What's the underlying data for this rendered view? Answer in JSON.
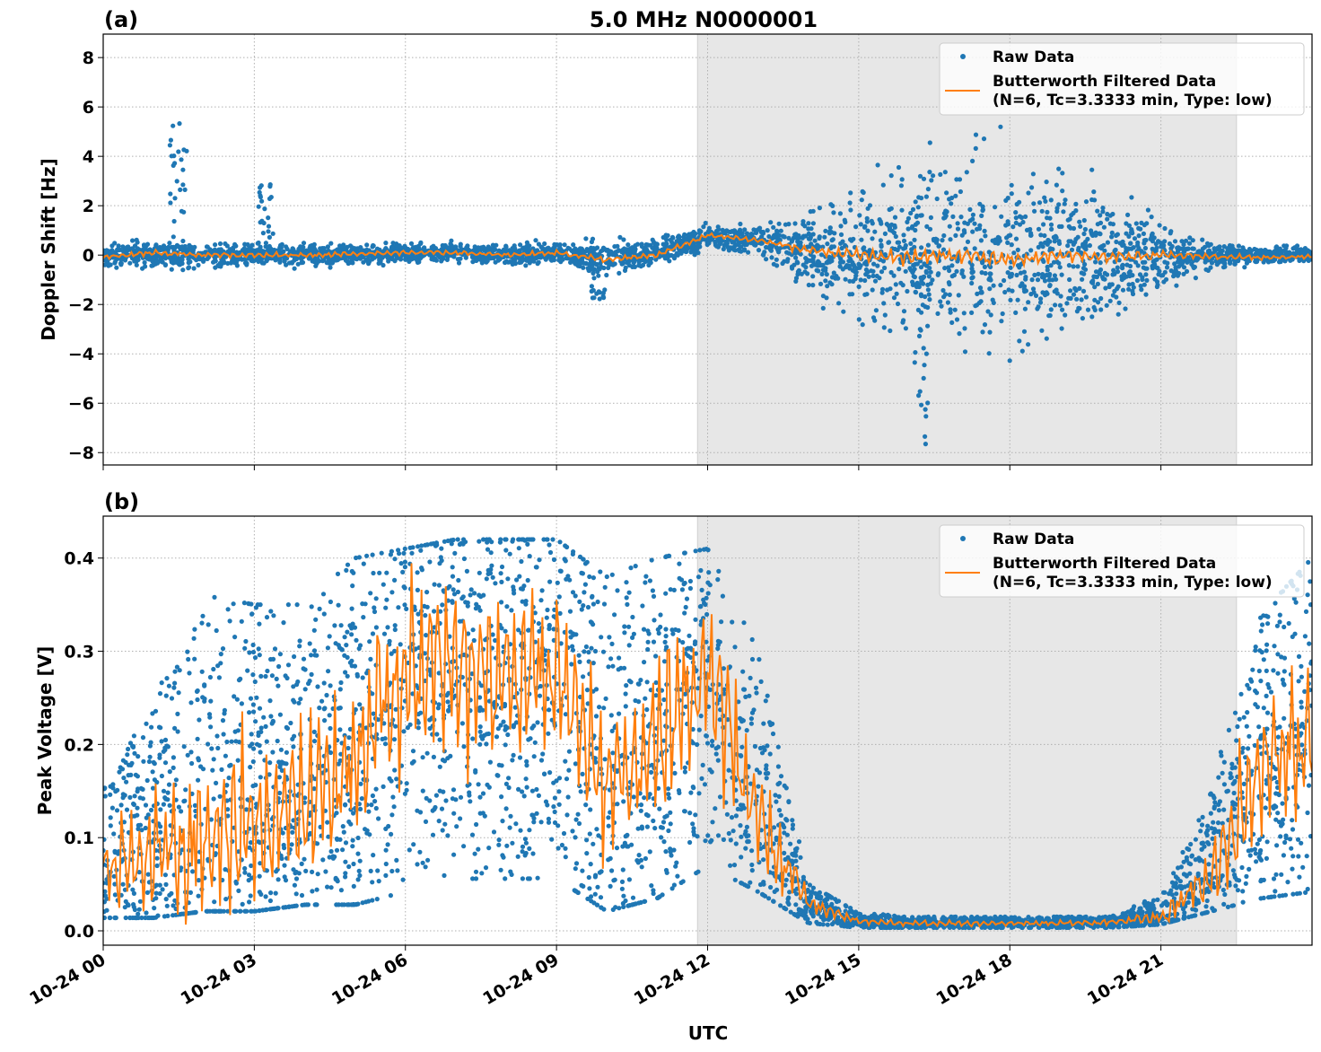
{
  "chart_data": [
    {
      "type": "scatter",
      "panel_label": "(a)",
      "title": "5.0 MHz N0000001",
      "xlabel": "",
      "ylabel": "Doppler Shift [Hz]",
      "xlim_hours": [
        0,
        24
      ],
      "ylim": [
        -8.5,
        8.95
      ],
      "yticks": [
        8,
        6,
        4,
        2,
        0,
        -2,
        -4,
        -6,
        -8
      ],
      "ytick_labels": [
        "8",
        "6",
        "4",
        "2",
        "0",
        "−2",
        "−4",
        "−6",
        "−8"
      ],
      "grid": true,
      "legend_position": "top-right",
      "legend": [
        "Raw Data",
        "Butterworth Filtered Data",
        "(N=6, Tc=3.3333 min, Type: low)"
      ],
      "shaded_span_hours": [
        11.8,
        22.5
      ],
      "hours": [
        0,
        1,
        2,
        3,
        4,
        5,
        6,
        7,
        8,
        9,
        10,
        11,
        12,
        13,
        14,
        15,
        16,
        17,
        18,
        19,
        20,
        21,
        22,
        23,
        24
      ],
      "raw_center": [
        0,
        0,
        0,
        0,
        0,
        0,
        0.1,
        0.1,
        0,
        0.1,
        -0.1,
        0.1,
        0.7,
        0.6,
        0.2,
        0,
        0,
        0,
        0,
        0,
        0,
        0,
        0,
        0,
        0
      ],
      "raw_spread": [
        0.35,
        0.5,
        0.4,
        0.4,
        0.35,
        0.35,
        0.3,
        0.3,
        0.3,
        0.35,
        0.6,
        0.45,
        0.4,
        0.5,
        1.3,
        2.2,
        2.8,
        3.1,
        3.1,
        2.7,
        2.1,
        1.2,
        0.45,
        0.3,
        0.3
      ],
      "filtered": [
        -0.1,
        0.1,
        0,
        0,
        0,
        0.05,
        0.1,
        0.1,
        0,
        0.1,
        -0.2,
        0,
        0.8,
        0.6,
        0.2,
        0,
        -0.1,
        0,
        -0.2,
        0,
        -0.1,
        0,
        -0.05,
        -0.1,
        -0.05
      ],
      "spikes": [
        {
          "hour": 1.5,
          "max": 5.4
        },
        {
          "hour": 3.2,
          "max": 2.9
        },
        {
          "hour": 9.8,
          "min": -1.8
        },
        {
          "hour": 16.2,
          "min": -7.7
        }
      ]
    },
    {
      "type": "scatter",
      "panel_label": "(b)",
      "xlabel": "UTC",
      "ylabel": "Peak Voltage [V]",
      "xlim_hours": [
        0,
        24
      ],
      "ylim": [
        -0.0154,
        0.445
      ],
      "yticks": [
        0.0,
        0.1,
        0.2,
        0.3,
        0.4
      ],
      "ytick_labels": [
        "0.0",
        "0.1",
        "0.2",
        "0.3",
        "0.4"
      ],
      "xticks_hours": [
        0,
        3,
        6,
        9,
        12,
        15,
        18,
        21
      ],
      "xtick_labels": [
        "10-24 00",
        "10-24 03",
        "10-24 06",
        "10-24 09",
        "10-24 12",
        "10-24 15",
        "10-24 18",
        "10-24 21"
      ],
      "grid": true,
      "legend_position": "top-right",
      "legend": [
        "Raw Data",
        "Butterworth Filtered Data",
        "(N=6, Tc=3.3333 min, Type: low)"
      ],
      "shaded_span_hours": [
        11.8,
        22.5
      ],
      "hours": [
        0,
        1,
        2,
        3,
        4,
        5,
        6,
        7,
        8,
        9,
        10,
        11,
        12,
        13,
        14,
        15,
        16,
        17,
        18,
        19,
        20,
        21,
        22,
        23,
        24
      ],
      "raw_low": [
        0.02,
        0.02,
        0.03,
        0.03,
        0.04,
        0.04,
        0.06,
        0.08,
        0.08,
        0.08,
        0.03,
        0.05,
        0.1,
        0.06,
        0.012,
        0.005,
        0.005,
        0.005,
        0.005,
        0.005,
        0.005,
        0.01,
        0.03,
        0.05,
        0.06
      ],
      "raw_high": [
        0.15,
        0.25,
        0.36,
        0.35,
        0.35,
        0.4,
        0.41,
        0.42,
        0.42,
        0.42,
        0.38,
        0.4,
        0.41,
        0.3,
        0.05,
        0.02,
        0.015,
        0.015,
        0.015,
        0.015,
        0.015,
        0.04,
        0.16,
        0.34,
        0.4
      ],
      "filtered": [
        0.07,
        0.08,
        0.1,
        0.12,
        0.14,
        0.18,
        0.28,
        0.28,
        0.28,
        0.27,
        0.15,
        0.2,
        0.28,
        0.12,
        0.03,
        0.01,
        0.008,
        0.008,
        0.008,
        0.008,
        0.009,
        0.015,
        0.06,
        0.18,
        0.2
      ]
    }
  ],
  "colors": {
    "raw": "#1f77b4",
    "filtered": "#ff7f0e",
    "span": "#e7e7e7"
  }
}
